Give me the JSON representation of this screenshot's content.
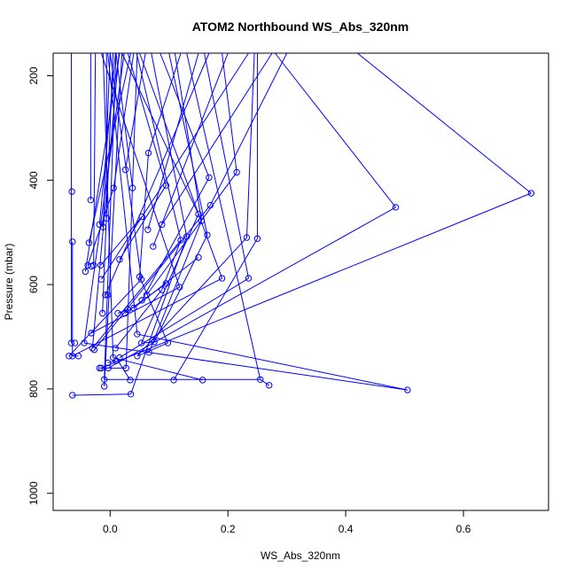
{
  "chart_data": {
    "type": "line",
    "title": "ATOM2 Northbound WS_Abs_320nm",
    "xlabel": "WS_Abs_320nm",
    "ylabel": "Pressure (mbar)",
    "xlim": [
      -0.1,
      0.75
    ],
    "ylim": [
      1030,
      155
    ],
    "y_reversed": true,
    "x_ticks": [
      0.0,
      0.2,
      0.4,
      0.6
    ],
    "x_tick_labels": [
      "0.0",
      "0.2",
      "0.4",
      "0.6"
    ],
    "y_ticks": [
      200,
      400,
      600,
      800,
      1000
    ],
    "y_tick_labels": [
      "200",
      "400",
      "600",
      "800",
      "1000"
    ],
    "grid": false,
    "legend": "none",
    "series": [
      {
        "color": "#0000ff",
        "marker": "open-circle",
        "points": [
          {
            "x": -0.064,
            "y": 812
          },
          {
            "x": 0.035,
            "y": 810
          },
          {
            "x": -0.01,
            "y": 795
          },
          {
            "x": 0.27,
            "y": 793
          },
          {
            "x": -0.01,
            "y": 782
          },
          {
            "x": 0.255,
            "y": 782
          },
          {
            "x": 0.108,
            "y": 783
          },
          {
            "x": 0.157,
            "y": 783
          },
          {
            "x": 0.034,
            "y": 783
          },
          {
            "x": 0.505,
            "y": 802
          },
          {
            "x": -0.015,
            "y": 760
          },
          {
            "x": -0.003,
            "y": 760
          },
          {
            "x": 0.027,
            "y": 760
          },
          {
            "x": -0.018,
            "y": 760
          },
          {
            "x": -0.004,
            "y": 750
          },
          {
            "x": 0.01,
            "y": 746
          },
          {
            "x": 0.016,
            "y": 740
          },
          {
            "x": 0.046,
            "y": 737
          },
          {
            "x": -0.064,
            "y": 737
          },
          {
            "x": -0.07,
            "y": 737
          },
          {
            "x": -0.054,
            "y": 737
          },
          {
            "x": 0.005,
            "y": 740
          },
          {
            "x": -0.066,
            "y": 712
          },
          {
            "x": -0.06,
            "y": 712
          },
          {
            "x": -0.044,
            "y": 712
          },
          {
            "x": 0.053,
            "y": 712
          },
          {
            "x": 0.075,
            "y": 710
          },
          {
            "x": 0.098,
            "y": 712
          },
          {
            "x": 0.066,
            "y": 730
          },
          {
            "x": 0.009,
            "y": 722
          },
          {
            "x": -0.027,
            "y": 725
          },
          {
            "x": -0.03,
            "y": 722
          },
          {
            "x": -0.032,
            "y": 693
          },
          {
            "x": 0.046,
            "y": 695
          },
          {
            "x": -0.013,
            "y": 655
          },
          {
            "x": 0.013,
            "y": 655
          },
          {
            "x": 0.025,
            "y": 655
          },
          {
            "x": 0.03,
            "y": 648
          },
          {
            "x": 0.04,
            "y": 645
          },
          {
            "x": 0.054,
            "y": 630
          },
          {
            "x": 0.062,
            "y": 620
          },
          {
            "x": 0.088,
            "y": 610
          },
          {
            "x": 0.118,
            "y": 605
          },
          {
            "x": 0.095,
            "y": 598
          },
          {
            "x": 0.053,
            "y": 590
          },
          {
            "x": 0.05,
            "y": 585
          },
          {
            "x": 0.19,
            "y": 588
          },
          {
            "x": 0.235,
            "y": 588
          },
          {
            "x": -0.015,
            "y": 590
          },
          {
            "x": -0.008,
            "y": 620
          },
          {
            "x": -0.004,
            "y": 620
          },
          {
            "x": -0.042,
            "y": 575
          },
          {
            "x": -0.038,
            "y": 563
          },
          {
            "x": -0.028,
            "y": 563
          },
          {
            "x": -0.016,
            "y": 563
          },
          {
            "x": -0.032,
            "y": 565
          },
          {
            "x": 0.016,
            "y": 552
          },
          {
            "x": 0.15,
            "y": 548
          },
          {
            "x": 0.073,
            "y": 527
          },
          {
            "x": -0.064,
            "y": 518
          },
          {
            "x": -0.036,
            "y": 520
          },
          {
            "x": 0.12,
            "y": 515
          },
          {
            "x": 0.13,
            "y": 508
          },
          {
            "x": 0.165,
            "y": 505
          },
          {
            "x": 0.232,
            "y": 510
          },
          {
            "x": 0.25,
            "y": 512
          },
          {
            "x": 0.064,
            "y": 495
          },
          {
            "x": -0.018,
            "y": 485
          },
          {
            "x": -0.012,
            "y": 490
          },
          {
            "x": -0.006,
            "y": 473
          },
          {
            "x": 0.054,
            "y": 470
          },
          {
            "x": 0.088,
            "y": 485
          },
          {
            "x": 0.155,
            "y": 478
          },
          {
            "x": 0.15,
            "y": 465
          },
          {
            "x": 0.17,
            "y": 448
          },
          {
            "x": 0.485,
            "y": 452
          },
          {
            "x": 0.715,
            "y": 425
          },
          {
            "x": -0.033,
            "y": 438
          },
          {
            "x": -0.065,
            "y": 422
          },
          {
            "x": 0.006,
            "y": 415
          },
          {
            "x": 0.038,
            "y": 415
          },
          {
            "x": 0.095,
            "y": 410
          },
          {
            "x": 0.168,
            "y": 395
          },
          {
            "x": 0.215,
            "y": 385
          },
          {
            "x": 0.026,
            "y": 380
          },
          {
            "x": 0.065,
            "y": 348
          }
        ],
        "segments": [
          [
            [
              -0.064,
              812
            ],
            [
              0.035,
              810
            ]
          ],
          [
            [
              -0.01,
              782
            ],
            [
              0.255,
              782
            ]
          ],
          [
            [
              0.255,
              782
            ],
            [
              0.27,
              793
            ]
          ],
          [
            [
              0.255,
              782
            ],
            [
              0.13,
              155
            ]
          ],
          [
            [
              0.108,
              783
            ],
            [
              0.25,
              512
            ]
          ],
          [
            [
              0.157,
              783
            ],
            [
              0.005,
              740
            ]
          ],
          [
            [
              0.035,
              810
            ],
            [
              0.13,
              508
            ]
          ],
          [
            [
              -0.01,
              795
            ],
            [
              0.02,
              155
            ]
          ],
          [
            [
              -0.01,
              782
            ],
            [
              0.01,
              155
            ]
          ],
          [
            [
              0.505,
              802
            ],
            [
              -0.044,
              712
            ]
          ],
          [
            [
              0.505,
              802
            ],
            [
              0.046,
              695
            ]
          ],
          [
            [
              -0.015,
              760
            ],
            [
              0.715,
              425
            ]
          ],
          [
            [
              -0.003,
              760
            ],
            [
              0.485,
              452
            ]
          ],
          [
            [
              0.027,
              760
            ],
            [
              0.046,
              155
            ]
          ],
          [
            [
              0.046,
              737
            ],
            [
              0.232,
              510
            ]
          ],
          [
            [
              0.016,
              740
            ],
            [
              0.235,
              588
            ]
          ],
          [
            [
              -0.064,
              737
            ],
            [
              0.19,
              588
            ]
          ],
          [
            [
              -0.07,
              737
            ],
            [
              0.053,
              590
            ]
          ],
          [
            [
              -0.066,
              712
            ],
            [
              -0.066,
              155
            ]
          ],
          [
            [
              -0.064,
              737
            ],
            [
              -0.064,
              518
            ]
          ],
          [
            [
              0.075,
              710
            ],
            [
              0.165,
              505
            ]
          ],
          [
            [
              0.098,
              712
            ],
            [
              0.05,
              585
            ]
          ],
          [
            [
              0.066,
              730
            ],
            [
              0.155,
              478
            ]
          ],
          [
            [
              0.053,
              712
            ],
            [
              0.15,
              465
            ]
          ],
          [
            [
              -0.027,
              725
            ],
            [
              0.17,
              448
            ]
          ],
          [
            [
              -0.03,
              722
            ],
            [
              0.12,
              515
            ]
          ],
          [
            [
              -0.032,
              693
            ],
            [
              0.118,
              605
            ]
          ],
          [
            [
              0.009,
              722
            ],
            [
              0.088,
              610
            ]
          ],
          [
            [
              -0.013,
              655
            ],
            [
              0.005,
              155
            ]
          ],
          [
            [
              0.013,
              655
            ],
            [
              0.03,
              648
            ]
          ],
          [
            [
              0.025,
              655
            ],
            [
              0.095,
              598
            ]
          ],
          [
            [
              0.04,
              645
            ],
            [
              0.15,
              548
            ]
          ],
          [
            [
              0.054,
              630
            ],
            [
              0.168,
              395
            ]
          ],
          [
            [
              0.062,
              620
            ],
            [
              0.215,
              385
            ]
          ],
          [
            [
              0.088,
              610
            ],
            [
              0.12,
              515
            ]
          ],
          [
            [
              0.05,
              585
            ],
            [
              0.065,
              348
            ]
          ],
          [
            [
              -0.015,
              590
            ],
            [
              0.235,
              155
            ]
          ],
          [
            [
              -0.008,
              620
            ],
            [
              0.168,
              155
            ]
          ],
          [
            [
              -0.042,
              575
            ],
            [
              0.016,
              155
            ]
          ],
          [
            [
              -0.038,
              563
            ],
            [
              0.006,
              415
            ]
          ],
          [
            [
              -0.016,
              563
            ],
            [
              0.054,
              470
            ]
          ],
          [
            [
              0.016,
              552
            ],
            [
              0.095,
              410
            ]
          ],
          [
            [
              0.073,
              527
            ],
            [
              0.2,
              155
            ]
          ],
          [
            [
              -0.036,
              520
            ],
            [
              0.035,
              155
            ]
          ],
          [
            [
              0.13,
              508
            ],
            [
              0.07,
              155
            ]
          ],
          [
            [
              0.165,
              505
            ],
            [
              0.1,
              155
            ]
          ],
          [
            [
              0.25,
              512
            ],
            [
              0.25,
              155
            ]
          ],
          [
            [
              0.232,
              510
            ],
            [
              0.245,
              155
            ]
          ],
          [
            [
              0.064,
              495
            ],
            [
              0.15,
              155
            ]
          ],
          [
            [
              -0.018,
              485
            ],
            [
              0.009,
              155
            ]
          ],
          [
            [
              -0.012,
              490
            ],
            [
              0.0,
              155
            ]
          ],
          [
            [
              -0.006,
              473
            ],
            [
              -0.006,
              155
            ]
          ],
          [
            [
              0.088,
              485
            ],
            [
              0.275,
              155
            ]
          ],
          [
            [
              0.155,
              478
            ],
            [
              0.11,
              155
            ]
          ],
          [
            [
              0.17,
              448
            ],
            [
              0.3,
              155
            ]
          ],
          [
            [
              0.485,
              452
            ],
            [
              0.28,
              155
            ]
          ],
          [
            [
              0.715,
              425
            ],
            [
              0.42,
              155
            ]
          ],
          [
            [
              -0.033,
              438
            ],
            [
              -0.033,
              155
            ]
          ],
          [
            [
              0.006,
              415
            ],
            [
              0.04,
              155
            ]
          ],
          [
            [
              0.038,
              415
            ],
            [
              0.01,
              155
            ]
          ],
          [
            [
              0.095,
              410
            ],
            [
              0.03,
              155
            ]
          ],
          [
            [
              0.215,
              385
            ],
            [
              0.19,
              155
            ]
          ],
          [
            [
              0.026,
              380
            ],
            [
              0.06,
              155
            ]
          ],
          [
            [
              0.065,
              348
            ],
            [
              0.12,
              155
            ]
          ],
          [
            [
              0.168,
              395
            ],
            [
              0.085,
              155
            ]
          ],
          [
            [
              0.15,
              465
            ],
            [
              0.02,
              155
            ]
          ],
          [
            [
              0.12,
              515
            ],
            [
              0.045,
              155
            ]
          ],
          [
            [
              0.046,
              695
            ],
            [
              -0.004,
              155
            ]
          ],
          [
            [
              -0.044,
              712
            ],
            [
              0.024,
              155
            ]
          ],
          [
            [
              -0.03,
              722
            ],
            [
              0.015,
              155
            ]
          ],
          [
            [
              0.118,
              605
            ],
            [
              -0.015,
              155
            ]
          ],
          [
            [
              0.053,
              590
            ],
            [
              0.0,
              155
            ]
          ],
          [
            [
              0.19,
              588
            ],
            [
              0.05,
              155
            ]
          ],
          [
            [
              0.235,
              588
            ],
            [
              0.16,
              155
            ]
          ],
          [
            [
              -0.028,
              563
            ],
            [
              -0.025,
              155
            ]
          ],
          [
            [
              0.005,
              740
            ],
            [
              -0.012,
              155
            ]
          ],
          [
            [
              0.034,
              783
            ],
            [
              0.01,
              740
            ]
          ],
          [
            [
              0.027,
              760
            ],
            [
              -0.018,
              760
            ]
          ],
          [
            [
              -0.004,
              750
            ],
            [
              0.01,
              746
            ]
          ],
          [
            [
              0.046,
              737
            ],
            [
              0.098,
              712
            ]
          ],
          [
            [
              -0.054,
              737
            ],
            [
              -0.064,
              737
            ]
          ],
          [
            [
              0.075,
              710
            ],
            [
              0.053,
              712
            ]
          ]
        ]
      }
    ]
  }
}
